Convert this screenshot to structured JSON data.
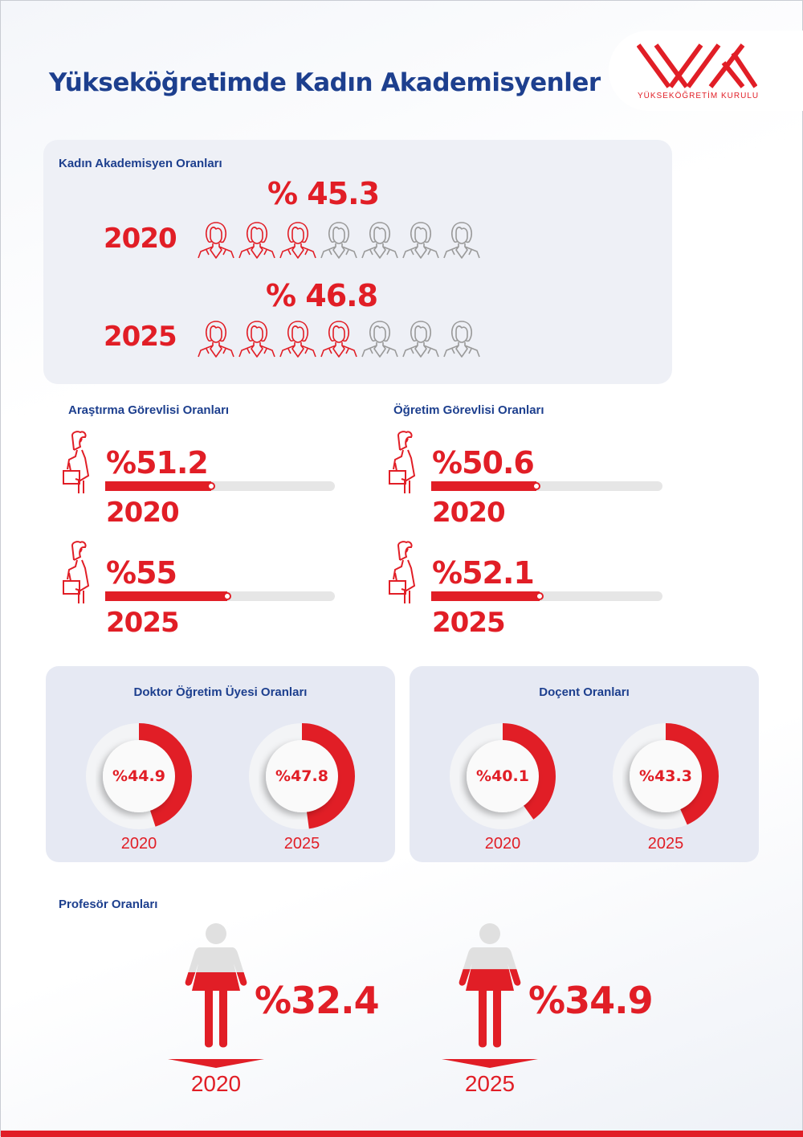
{
  "header": {
    "title": "Yükseköğretimde Kadın Akademisyenler",
    "logo_text": "YÜKSEKÖĞRETİM KURULU"
  },
  "colors": {
    "accent": "#e11e26",
    "title": "#1d3f8e",
    "inactive": "#9a9a9a"
  },
  "overall": {
    "label": "Kadın Akademisyen Oranları",
    "rows": [
      {
        "year": "2020",
        "value_label": "% 45.3",
        "value": 45.3,
        "filled_icons": 3,
        "total_icons": 7
      },
      {
        "year": "2025",
        "value_label": "% 46.8",
        "value": 46.8,
        "filled_icons": 4,
        "total_icons": 7
      }
    ]
  },
  "research": {
    "label": "Araştırma Görevlisi Oranları",
    "rows": [
      {
        "year": "2020",
        "value_label": "%51.2",
        "value": 51.2
      },
      {
        "year": "2025",
        "value_label": "%55",
        "value": 55
      }
    ]
  },
  "lecturer": {
    "label": "Öğretim Görevlisi Oranları",
    "rows": [
      {
        "year": "2020",
        "value_label": "%50.6",
        "value": 50.6
      },
      {
        "year": "2025",
        "value_label": "%52.1",
        "value": 52.1
      }
    ]
  },
  "assistant_prof": {
    "label": "Doktor Öğretim Üyesi Oranları",
    "rows": [
      {
        "year": "2020",
        "value_label": "%44.9",
        "value": 44.9
      },
      {
        "year": "2025",
        "value_label": "%47.8",
        "value": 47.8
      }
    ]
  },
  "assoc_prof": {
    "label": "Doçent Oranları",
    "rows": [
      {
        "year": "2020",
        "value_label": "%40.1",
        "value": 40.1
      },
      {
        "year": "2025",
        "value_label": "%43.3",
        "value": 43.3
      }
    ]
  },
  "professor": {
    "label": "Profesör Oranları",
    "rows": [
      {
        "year": "2020",
        "value_label": "%32.4",
        "value": 32.4
      },
      {
        "year": "2025",
        "value_label": "%34.9",
        "value": 34.9
      }
    ]
  },
  "chart_data": [
    {
      "type": "bar",
      "title": "Kadın Akademisyen Oranları",
      "categories": [
        "2020",
        "2025"
      ],
      "values": [
        45.3,
        46.8
      ],
      "ylim": [
        0,
        100
      ]
    },
    {
      "type": "bar",
      "title": "Araştırma Görevlisi Oranları",
      "categories": [
        "2020",
        "2025"
      ],
      "values": [
        51.2,
        55
      ],
      "ylim": [
        0,
        100
      ]
    },
    {
      "type": "bar",
      "title": "Öğretim Görevlisi Oranları",
      "categories": [
        "2020",
        "2025"
      ],
      "values": [
        50.6,
        52.1
      ],
      "ylim": [
        0,
        100
      ]
    },
    {
      "type": "pie",
      "title": "Doktor Öğretim Üyesi Oranları",
      "categories": [
        "2020",
        "2025"
      ],
      "values": [
        44.9,
        47.8
      ]
    },
    {
      "type": "pie",
      "title": "Doçent Oranları",
      "categories": [
        "2020",
        "2025"
      ],
      "values": [
        40.1,
        43.3
      ]
    },
    {
      "type": "bar",
      "title": "Profesör Oranları",
      "categories": [
        "2020",
        "2025"
      ],
      "values": [
        32.4,
        34.9
      ],
      "ylim": [
        0,
        100
      ]
    }
  ]
}
